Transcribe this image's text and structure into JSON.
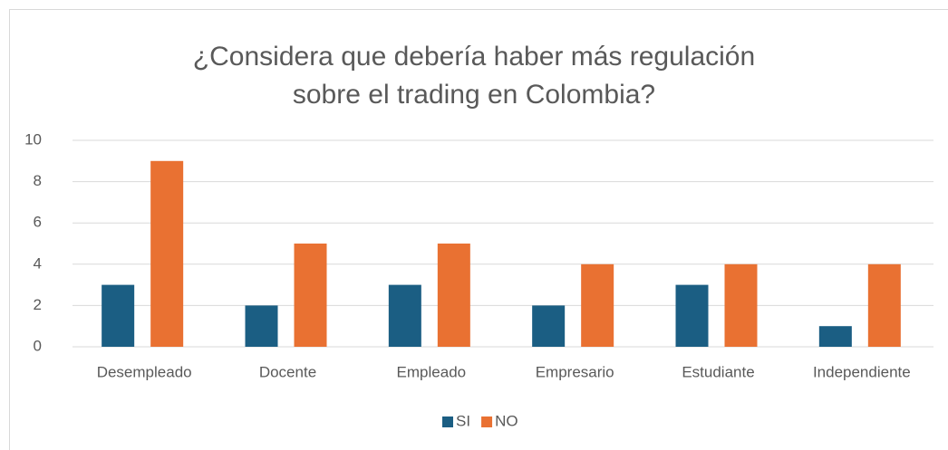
{
  "chart_data": {
    "type": "bar",
    "title": "¿Considera que debería haber más regulación sobre el trading en Colombia?",
    "categories": [
      "Desempleado",
      "Docente",
      "Empleado",
      "Empresario",
      "Estudiante",
      "Independiente"
    ],
    "series": [
      {
        "name": "SI",
        "color": "#1b5e83",
        "values": [
          3,
          2,
          3,
          2,
          3,
          1
        ]
      },
      {
        "name": "NO",
        "color": "#e97132",
        "values": [
          9,
          5,
          5,
          4,
          4,
          4
        ]
      }
    ],
    "ylim": [
      0,
      10
    ],
    "yticks": [
      0,
      2,
      4,
      6,
      8,
      10
    ],
    "grid": true,
    "legend": "bottom"
  }
}
